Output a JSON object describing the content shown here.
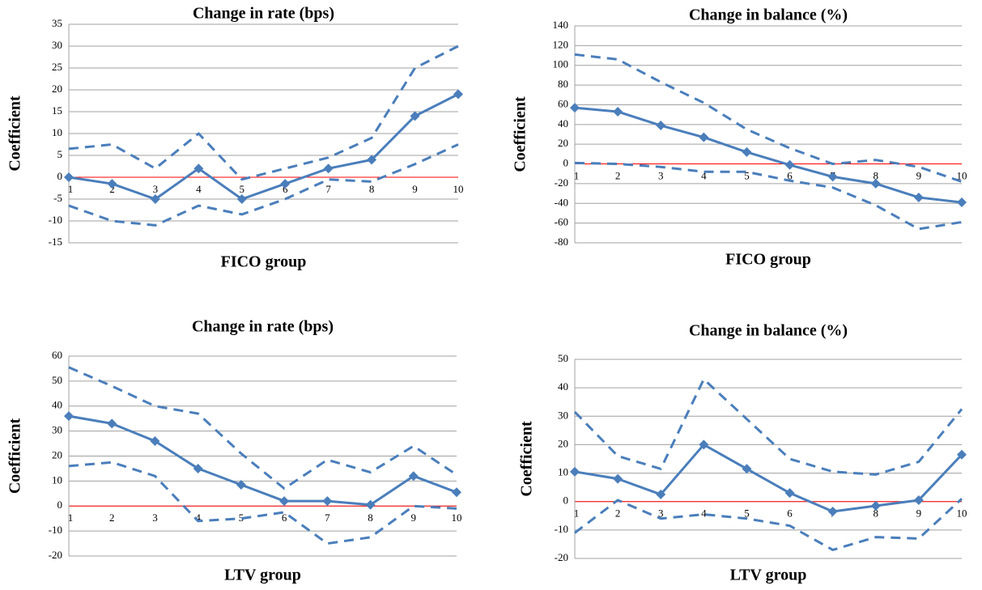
{
  "chart_data": [
    {
      "type": "line",
      "title": "Change in rate (bps)",
      "x_label": "FICO group",
      "y_label": "Coefficient",
      "categories": [
        "1",
        "2",
        "3",
        "4",
        "5",
        "6",
        "7",
        "8",
        "9",
        "10"
      ],
      "ylim": [
        -15,
        35
      ],
      "yticks": [
        -15,
        -10,
        -5,
        0,
        5,
        10,
        15,
        20,
        25,
        30,
        35
      ],
      "grid": true,
      "zero_line_color": "#ff0000",
      "series": [
        {
          "color": "#4a7ebb",
          "style": "solid",
          "markers": true,
          "values": [
            0,
            -1.5,
            -5,
            2,
            -5,
            -1.5,
            2,
            4,
            14,
            19
          ]
        },
        {
          "color": "#4a7ebb",
          "style": "dashed",
          "markers": false,
          "values": [
            6.5,
            7.5,
            2,
            10,
            -0.5,
            2,
            4.5,
            9,
            25,
            30
          ]
        },
        {
          "color": "#4a7ebb",
          "style": "dashed",
          "markers": false,
          "values": [
            -6.5,
            -10,
            -11,
            -6.5,
            -8.5,
            -5,
            -0.5,
            -1,
            3,
            7.5
          ]
        }
      ]
    },
    {
      "type": "line",
      "title": "Change in balance (%)",
      "x_label": "FICO group",
      "y_label": "Coefficient",
      "categories": [
        "1",
        "2",
        "3",
        "4",
        "5",
        "6",
        "7",
        "8",
        "9",
        "10"
      ],
      "ylim": [
        -80,
        140
      ],
      "yticks": [
        -80,
        -60,
        -40,
        -20,
        0,
        20,
        40,
        60,
        80,
        100,
        120,
        140
      ],
      "grid": true,
      "zero_line_color": "#ff0000",
      "series": [
        {
          "color": "#4a7ebb",
          "style": "solid",
          "markers": true,
          "values": [
            57,
            53,
            39,
            27,
            12,
            -1,
            -13,
            -20,
            -34,
            -39
          ]
        },
        {
          "color": "#4a7ebb",
          "style": "dashed",
          "markers": false,
          "values": [
            111,
            106,
            83,
            62,
            35,
            16,
            0,
            4,
            -3,
            -18
          ]
        },
        {
          "color": "#4a7ebb",
          "style": "dashed",
          "markers": false,
          "values": [
            1,
            0,
            -3,
            -8,
            -8,
            -17,
            -24,
            -42,
            -66,
            -59
          ]
        }
      ]
    },
    {
      "type": "line",
      "title": "Change in rate (bps)",
      "x_label": "LTV group",
      "y_label": "Coefficient",
      "categories": [
        "1",
        "2",
        "3",
        "4",
        "5",
        "6",
        "7",
        "8",
        "9",
        "10"
      ],
      "ylim": [
        -20,
        60
      ],
      "yticks": [
        -20,
        -10,
        0,
        10,
        20,
        30,
        40,
        50,
        60
      ],
      "grid": true,
      "zero_line_color": "#ff0000",
      "series": [
        {
          "color": "#4a7ebb",
          "style": "solid",
          "markers": true,
          "values": [
            36,
            33,
            26,
            15,
            8.5,
            2,
            2,
            0.5,
            12,
            5.5
          ]
        },
        {
          "color": "#4a7ebb",
          "style": "dashed",
          "markers": false,
          "values": [
            55.5,
            48,
            40,
            37,
            21,
            7,
            18.5,
            13.5,
            24,
            12.5
          ]
        },
        {
          "color": "#4a7ebb",
          "style": "dashed",
          "markers": false,
          "values": [
            16,
            17.5,
            12,
            -6,
            -5,
            -2.5,
            -15,
            -12.5,
            0,
            -1
          ]
        }
      ]
    },
    {
      "type": "line",
      "title": "Change in balance (%)",
      "x_label": "LTV group",
      "y_label": "Coefficient",
      "categories": [
        "1",
        "2",
        "3",
        "4",
        "5",
        "6",
        "7",
        "8",
        "9",
        "10"
      ],
      "ylim": [
        -20,
        50
      ],
      "yticks": [
        -20,
        -10,
        0,
        10,
        20,
        30,
        40,
        50
      ],
      "grid": true,
      "zero_line_color": "#ff0000",
      "series": [
        {
          "color": "#4a7ebb",
          "style": "solid",
          "markers": true,
          "values": [
            10.5,
            8,
            2.5,
            20,
            11.5,
            3,
            -3.5,
            -1.5,
            0.5,
            16.5
          ]
        },
        {
          "color": "#4a7ebb",
          "style": "dashed",
          "markers": false,
          "values": [
            31.5,
            16,
            11.5,
            43,
            29,
            15,
            10.5,
            9.5,
            14,
            32.5
          ]
        },
        {
          "color": "#4a7ebb",
          "style": "dashed",
          "markers": false,
          "values": [
            -11,
            0.5,
            -6,
            -4.5,
            -6,
            -8.5,
            -17,
            -12.5,
            -13,
            1
          ]
        }
      ]
    }
  ]
}
